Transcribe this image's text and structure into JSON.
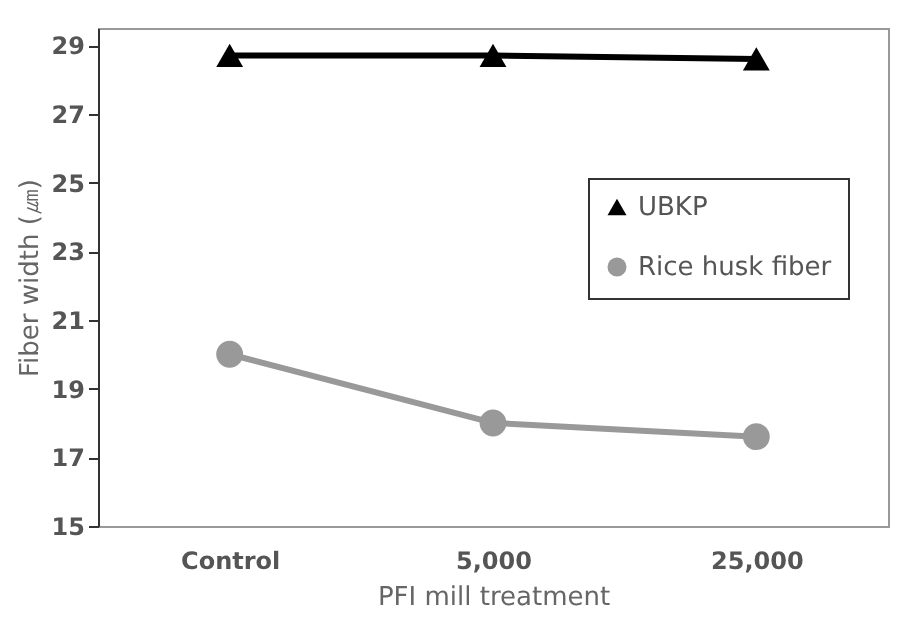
{
  "chart_data": {
    "type": "line",
    "xlabel": "PFI mill treatment",
    "ylabel": "Fiber width (㎛)",
    "categories": [
      "Control",
      "5,000",
      "25,000"
    ],
    "series": [
      {
        "name": "UBKP",
        "color": "#000000",
        "marker": "triangle",
        "values": [
          28.7,
          28.7,
          28.6
        ]
      },
      {
        "name": "Rice husk fiber",
        "color": "#999999",
        "marker": "circle",
        "values": [
          20.0,
          18.0,
          17.6
        ]
      }
    ],
    "ylim": [
      15,
      29.5
    ],
    "yticks": [
      15,
      17,
      19,
      21,
      23,
      25,
      27,
      29
    ],
    "grid": false,
    "legend": "right"
  }
}
